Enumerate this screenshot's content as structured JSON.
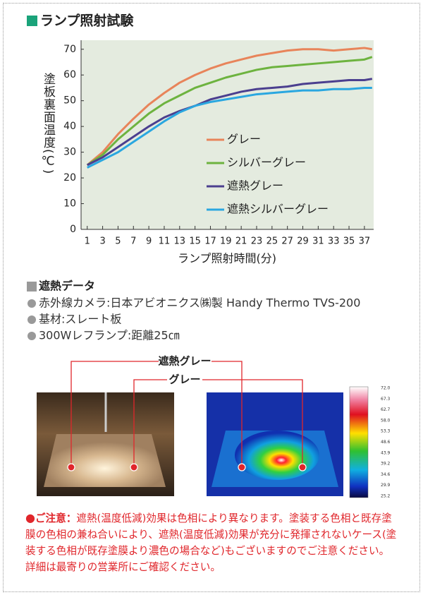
{
  "header": {
    "title": "ランプ照射試験"
  },
  "chart_data": {
    "type": "line",
    "y_label": "塗板裏面温度(℃)",
    "x_label": "ランプ照射時間(分)",
    "x": [
      1,
      3,
      5,
      7,
      9,
      11,
      13,
      15,
      17,
      19,
      21,
      23,
      25,
      27,
      29,
      31,
      33,
      35,
      37,
      38
    ],
    "xlim": [
      0.2,
      38.2
    ],
    "xticks": [
      1,
      3,
      5,
      7,
      9,
      11,
      13,
      15,
      17,
      19,
      21,
      23,
      25,
      27,
      29,
      31,
      33,
      35,
      37
    ],
    "ylim": [
      0,
      73.5
    ],
    "yticks": [
      0,
      10,
      20,
      30,
      40,
      50,
      60,
      70
    ],
    "grid": false,
    "series": [
      {
        "name": "グレー",
        "color": "#e8845a",
        "values": [
          25,
          30,
          37,
          43,
          48.5,
          53,
          57,
          60,
          62.5,
          64.5,
          66,
          67.5,
          68.5,
          69.5,
          70,
          70,
          69.5,
          70,
          70.5,
          70
        ]
      },
      {
        "name": "シルバーグレー",
        "color": "#6db33f",
        "values": [
          25,
          29,
          35,
          40,
          45,
          49,
          52,
          55,
          57,
          59,
          60.5,
          62,
          63,
          63.5,
          64,
          64.5,
          65,
          65.5,
          66,
          67
        ]
      },
      {
        "name": "遮熱グレー",
        "color": "#4b3f8f",
        "values": [
          25,
          28,
          32,
          36,
          40,
          43.5,
          46,
          48,
          50.5,
          52,
          53.5,
          54.5,
          55,
          55.5,
          56.5,
          57,
          57.5,
          58,
          58,
          58.5
        ]
      },
      {
        "name": "遮熱シルバーグレー",
        "color": "#2aa7e0",
        "values": [
          24,
          27,
          30,
          34,
          38,
          42,
          45.5,
          48,
          49.5,
          50.5,
          51.5,
          52.5,
          53,
          53.5,
          54,
          54,
          54.5,
          54.5,
          55,
          55
        ]
      }
    ]
  },
  "data_section": {
    "title": "遮熱データ",
    "items": [
      "赤外線カメラ:日本アビオニクス㈱製 Handy Thermo TVS-200",
      "基材:スレート板",
      "300Wレフランプ:距離25㎝"
    ]
  },
  "photos": {
    "label_1": "遮熱グレー",
    "label_2": "グレー",
    "scale": [
      "72.0",
      "67.3",
      "62.7",
      "58.0",
      "53.3",
      "48.6",
      "43.9",
      "39.2",
      "34.6",
      "29.9",
      "25.2"
    ]
  },
  "note": {
    "label": "ご注意：",
    "text": "遮熱(温度低減)効果は色相により異なります。塗装する色相と既存塗膜の色相の兼ね合いにより、遮熱(温度低減)効果が充分に発揮されないケース(塗装する色相が既存塗膜より濃色の場合など)もございますのでご注意ください。詳細は最寄りの営業所にご確認ください。"
  }
}
